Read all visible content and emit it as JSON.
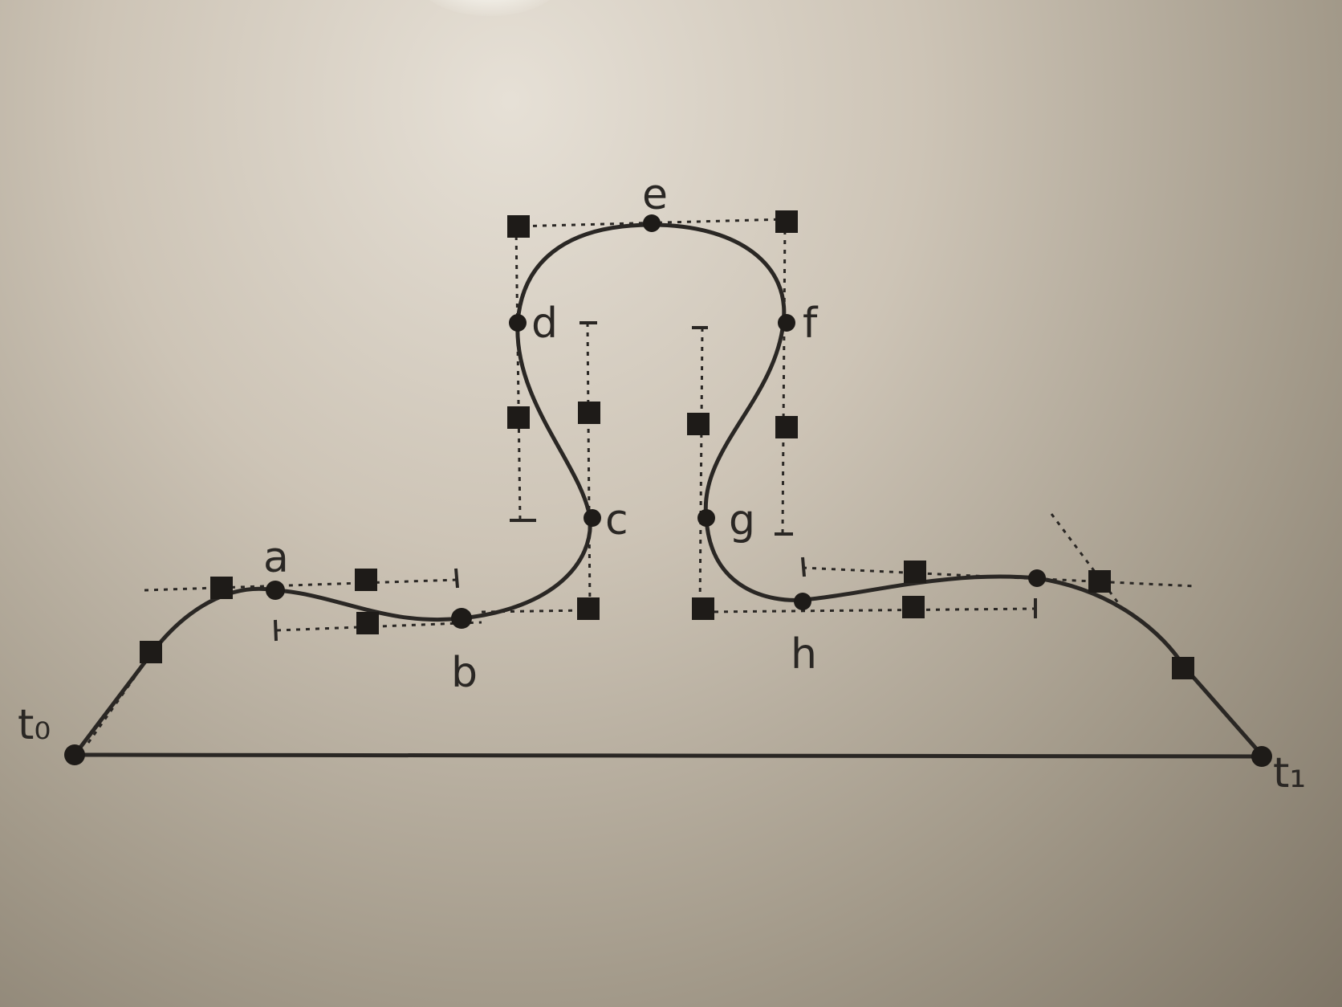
{
  "labels": {
    "t0": "t₀",
    "t1": "t₁",
    "a": "a",
    "b": "b",
    "c": "c",
    "d": "d",
    "e": "e",
    "f": "f",
    "g": "g",
    "h": "h"
  },
  "colors": {
    "ink": "#2a2724",
    "board": "#cdc4b6"
  }
}
